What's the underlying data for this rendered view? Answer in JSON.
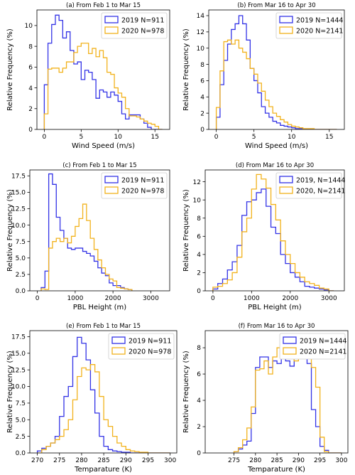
{
  "colors": {
    "s2019": "#3333e6",
    "s2020": "#f2b21c"
  },
  "chart_data": [
    {
      "type": "bar",
      "title": "(a) From Feb 1 to Mar 15",
      "xlabel": "Wind Speed (m/s)",
      "ylabel": "Relative Frequency (%)",
      "xlim": [
        -1,
        17
      ],
      "ylim": [
        0,
        11.5
      ],
      "xticks": [
        "0",
        "5",
        "10",
        "15"
      ],
      "xtick_values": [
        0,
        5,
        10,
        15
      ],
      "yticks": [
        "0",
        "2",
        "4",
        "6",
        "8",
        "10"
      ],
      "ytick_values": [
        0,
        2,
        4,
        6,
        8,
        10
      ],
      "legend": "top-right",
      "grid": false,
      "bin_start": 0,
      "bin_width": 0.5,
      "series": [
        {
          "name": "2019 N=911",
          "values": [
            4.3,
            8.3,
            10.1,
            11.0,
            10.5,
            8.8,
            9.4,
            7.6,
            6.3,
            6.5,
            4.8,
            5.7,
            5.5,
            4.8,
            3.0,
            3.8,
            3.6,
            3.1,
            3.6,
            3.3,
            2.7,
            1.5,
            1.0,
            1.4,
            1.4,
            1.4,
            1.0,
            0.6,
            0.2,
            0.0,
            0.0,
            0.0
          ]
        },
        {
          "name": "2020 N=978",
          "values": [
            1.5,
            5.8,
            5.9,
            5.9,
            5.5,
            5.9,
            6.5,
            6.5,
            7.4,
            8.0,
            8.3,
            8.3,
            7.3,
            7.8,
            7.0,
            7.6,
            6.9,
            5.5,
            5.3,
            4.0,
            3.5,
            3.1,
            2.0,
            1.3,
            1.3,
            1.2,
            1.0,
            0.8,
            0.6,
            0.5,
            0.3,
            0.0
          ]
        }
      ]
    },
    {
      "type": "bar",
      "title": "(b) From Mar 16 to Apr 30",
      "xlabel": "Wind Speed (m/s)",
      "ylabel": "Relative Frequency (%)",
      "xlim": [
        -1,
        17
      ],
      "ylim": [
        0,
        14.7
      ],
      "xticks": [
        "0",
        "5",
        "10",
        "15"
      ],
      "xtick_values": [
        0,
        5,
        10,
        15
      ],
      "yticks": [
        "0",
        "2",
        "4",
        "6",
        "8",
        "10",
        "12",
        "14"
      ],
      "ytick_values": [
        0,
        2,
        4,
        6,
        8,
        10,
        12,
        14
      ],
      "legend": "top-right",
      "grid": false,
      "bin_start": 0,
      "bin_width": 0.5,
      "series": [
        {
          "name": "2019 N=1444",
          "values": [
            1.5,
            5.5,
            8.5,
            10.5,
            12.3,
            13.0,
            14.0,
            13.0,
            11.0,
            7.5,
            6.0,
            4.5,
            2.8,
            2.0,
            1.5,
            1.0,
            0.8,
            0.5,
            0.4,
            0.3,
            0.2,
            0.1,
            0.1,
            0.0,
            0.0,
            0.0,
            0.0,
            0.0,
            0.0,
            0.0,
            0.0,
            0.0
          ]
        },
        {
          "name": "2020 N=2141",
          "values": [
            2.7,
            7.2,
            10.8,
            11.0,
            10.5,
            11.0,
            10.0,
            9.5,
            8.7,
            7.5,
            6.8,
            5.7,
            4.7,
            3.6,
            2.8,
            2.0,
            1.6,
            1.2,
            0.9,
            0.6,
            0.4,
            0.3,
            0.2,
            0.1,
            0.1,
            0.1,
            0.0,
            0.0,
            0.0,
            0.0,
            0.0,
            0.0
          ]
        }
      ]
    },
    {
      "type": "bar",
      "title": "(c) From Feb 1 to Mar 15",
      "xlabel": "PBL Height (m)",
      "ylabel": "Relative Frequency (%)",
      "xlim": [
        -200,
        3500
      ],
      "ylim": [
        0,
        18.4
      ],
      "xticks": [
        "0",
        "1000",
        "2000",
        "3000"
      ],
      "xtick_values": [
        0,
        1000,
        2000,
        3000
      ],
      "yticks": [
        "0.0",
        "2.5",
        "5.0",
        "7.5",
        "10.0",
        "12.5",
        "15.0",
        "17.5"
      ],
      "ytick_values": [
        0,
        2.5,
        5,
        7.5,
        10,
        12.5,
        15,
        17.5
      ],
      "legend": "top-right",
      "grid": false,
      "bin_start": 100,
      "bin_width": 100,
      "series": [
        {
          "name": "2019 N=911",
          "values": [
            0.5,
            3.0,
            17.8,
            16.2,
            11.2,
            9.2,
            8.0,
            6.5,
            6.3,
            6.5,
            6.5,
            6.0,
            5.7,
            5.3,
            4.5,
            3.5,
            2.7,
            2.3,
            1.2,
            0.8,
            0.8,
            0.5,
            0.3,
            0.2
          ]
        },
        {
          "name": "2020 N=978",
          "values": [
            0.3,
            0.2,
            6.5,
            7.5,
            8.0,
            7.5,
            8.0,
            7.3,
            8.3,
            9.8,
            11.0,
            13.2,
            10.7,
            8.0,
            6.3,
            4.7,
            3.5,
            2.5,
            1.8,
            1.5,
            0.5,
            0.4,
            0.3,
            0.2
          ]
        }
      ]
    },
    {
      "type": "bar",
      "title": "(d) From Mar 16 to Apr 30",
      "xlabel": "PBL Height (m)",
      "ylabel": "Relative Frequency (%)",
      "xlim": [
        -200,
        3400
      ],
      "ylim": [
        0,
        13.3
      ],
      "xticks": [
        "0",
        "1000",
        "2000",
        "3000"
      ],
      "xtick_values": [
        0,
        1000,
        2000,
        3000
      ],
      "yticks": [
        "0",
        "2",
        "4",
        "6",
        "8",
        "10",
        "12"
      ],
      "ytick_values": [
        0,
        2,
        4,
        6,
        8,
        10,
        12
      ],
      "legend": "top-right",
      "grid": false,
      "bin_start": 0,
      "bin_width": 125,
      "series": [
        {
          "name": "2019, N=1444",
          "values": [
            0.2,
            0.8,
            1.3,
            2.3,
            3.2,
            5.0,
            8.3,
            9.8,
            10.0,
            10.8,
            11.2,
            9.3,
            7.0,
            6.3,
            4.0,
            3.0,
            2.0,
            1.5,
            1.0,
            0.5,
            0.4,
            0.3,
            0.2,
            0.1,
            0.0
          ]
        },
        {
          "name": "2020, N=2141",
          "values": [
            0.4,
            0.5,
            0.8,
            1.2,
            2.0,
            3.7,
            6.5,
            8.0,
            11.2,
            12.8,
            12.3,
            11.3,
            9.5,
            7.8,
            5.5,
            4.0,
            3.0,
            2.0,
            1.5,
            1.0,
            0.8,
            0.6,
            0.3,
            0.2,
            0.0
          ]
        }
      ]
    },
    {
      "type": "bar",
      "title": "(e) From Feb 1 to Mar 15",
      "xlabel": "Temparature (K)",
      "ylabel": "Relative Frequency (%)",
      "xlim": [
        268.3,
        301.5
      ],
      "ylim": [
        0,
        18.4
      ],
      "xticks": [
        "270",
        "275",
        "280",
        "285",
        "290",
        "295",
        "300"
      ],
      "xtick_values": [
        270,
        275,
        280,
        285,
        290,
        295,
        300
      ],
      "yticks": [
        "0.0",
        "2.5",
        "5.0",
        "7.5",
        "10.0",
        "12.5",
        "15.0",
        "17.5"
      ],
      "ytick_values": [
        0,
        2.5,
        5,
        7.5,
        10,
        12.5,
        15,
        17.5
      ],
      "legend": "top-right",
      "grid": false,
      "bin_start": 270,
      "bin_width": 1,
      "series": [
        {
          "name": "2019 N=911",
          "values": [
            0.3,
            0.7,
            1.0,
            1.5,
            2.5,
            5.5,
            8.5,
            10.0,
            14.5,
            17.4,
            16.5,
            14.0,
            9.5,
            6.0,
            2.5,
            1.0,
            0.5,
            0.3,
            0.2,
            0.1,
            0.1,
            0.0,
            0.0,
            0.0,
            0.0,
            0.0,
            0.0,
            0.0,
            0.0,
            0.0
          ]
        },
        {
          "name": "2020 N=978",
          "values": [
            0.0,
            0.5,
            1.0,
            1.5,
            2.0,
            2.5,
            3.5,
            5.0,
            8.0,
            11.5,
            12.8,
            12.5,
            13.3,
            12.2,
            8.5,
            5.0,
            4.0,
            2.5,
            1.5,
            1.0,
            0.5,
            0.3,
            0.2,
            0.1,
            0.1,
            0.0,
            0.0,
            0.0,
            0.0,
            0.0
          ]
        }
      ]
    },
    {
      "type": "bar",
      "title": "(f) From Mar 16 to Apr 30",
      "xlabel": "Temparature (K)",
      "ylabel": "Relative Frequency (%)",
      "xlim": [
        268.3,
        301.5
      ],
      "ylim": [
        0,
        9.3
      ],
      "xticks": [
        "275",
        "280",
        "285",
        "290",
        "295",
        "300"
      ],
      "xtick_values": [
        275,
        280,
        285,
        290,
        295,
        300
      ],
      "yticks": [
        "0",
        "2",
        "4",
        "6",
        "8"
      ],
      "ytick_values": [
        0,
        2,
        4,
        6,
        8
      ],
      "legend": "top-right",
      "grid": false,
      "bin_start": 275,
      "bin_width": 1,
      "series": [
        {
          "name": "2019 N=1444",
          "values": [
            0.1,
            0.3,
            0.6,
            0.9,
            3.0,
            6.5,
            7.3,
            7.3,
            6.5,
            7.0,
            6.8,
            7.2,
            7.0,
            6.6,
            7.6,
            8.1,
            8.0,
            6.8,
            3.3,
            2.0,
            0.5,
            0.2,
            0.0,
            0.0,
            0.0
          ]
        },
        {
          "name": "2020 N=2141",
          "values": [
            0.1,
            0.4,
            1.0,
            1.9,
            3.5,
            6.3,
            6.4,
            7.0,
            6.0,
            7.3,
            8.0,
            8.1,
            8.2,
            7.4,
            7.0,
            7.3,
            8.9,
            7.3,
            6.5,
            5.0,
            1.2,
            0.1,
            0.0,
            0.0,
            0.0
          ]
        }
      ]
    }
  ]
}
